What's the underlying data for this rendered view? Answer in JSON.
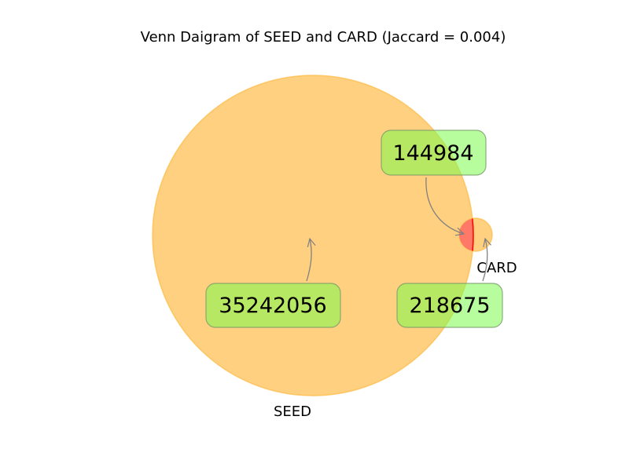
{
  "chart_data": {
    "type": "venn",
    "title": "Venn Daigram of SEED and CARD (Jaccard = 0.004)",
    "sets": [
      {
        "name": "SEED",
        "label": "SEED",
        "only_count": 35242056,
        "only_label": "35242056",
        "color": "#fdb942"
      },
      {
        "name": "CARD",
        "label": "CARD",
        "only_count": 218675,
        "only_label": "218675",
        "color": "#fdb942"
      }
    ],
    "intersection": {
      "sets": [
        "SEED",
        "CARD"
      ],
      "count": 144984,
      "label": "144984",
      "color": "#ff0000"
    },
    "jaccard": 0.004,
    "label_box_color": "#7cfc4c"
  }
}
